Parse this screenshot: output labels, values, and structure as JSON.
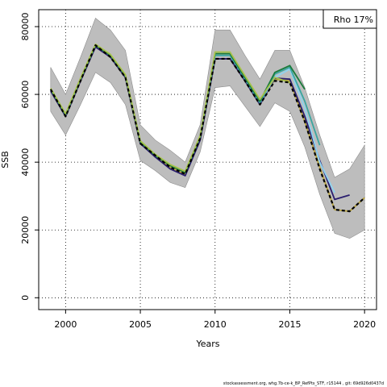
{
  "chart_data": {
    "type": "line",
    "xlabel": "Years",
    "ylabel": "SSB",
    "xlim": [
      1998.2,
      2020.8
    ],
    "ylim": [
      -3500,
      85000
    ],
    "xticks": [
      2000,
      2005,
      2010,
      2015,
      2020
    ],
    "yticks": [
      0,
      20000,
      40000,
      60000,
      80000
    ],
    "grid": "dotted",
    "legend": {
      "text": "Rho 17%",
      "placement": "top-right"
    },
    "band": {
      "x": [
        1999,
        2000,
        2001,
        2002,
        2003,
        2004,
        2005,
        2006,
        2007,
        2008,
        2009,
        2010,
        2011,
        2012,
        2013,
        2014,
        2015,
        2016,
        2017,
        2018,
        2019,
        2020
      ],
      "upper": [
        68000,
        60000,
        71000,
        82500,
        79000,
        73000,
        51000,
        46500,
        43500,
        40000,
        51000,
        79000,
        79000,
        71500,
        64500,
        73000,
        73000,
        62000,
        48000,
        35500,
        38000,
        45000
      ],
      "lower": [
        55000,
        48000,
        57000,
        66500,
        63500,
        57000,
        40500,
        37500,
        34000,
        32500,
        43000,
        62000,
        62500,
        56500,
        50500,
        57500,
        55000,
        44500,
        30500,
        19000,
        17500,
        20000
      ]
    },
    "series": [
      {
        "color": "#b5a03a",
        "dashed": false,
        "x": [
          1999,
          2000,
          2001,
          2002,
          2003,
          2004,
          2005,
          2006,
          2007,
          2008,
          2009,
          2010,
          2011,
          2012,
          2013,
          2014,
          2015,
          2016,
          2017,
          2018,
          2019,
          2020
        ],
        "values": [
          61500,
          53500,
          64000,
          74500,
          71000,
          65000,
          45500,
          42000,
          38500,
          36500,
          47000,
          70500,
          70500,
          64000,
          57000,
          64500,
          64000,
          52000,
          38500,
          26000,
          25500,
          29500
        ]
      },
      {
        "color": "#2a1e6e",
        "dashed": false,
        "x": [
          1999,
          2000,
          2001,
          2002,
          2003,
          2004,
          2005,
          2006,
          2007,
          2008,
          2009,
          2010,
          2011,
          2012,
          2013,
          2014,
          2015,
          2016,
          2017,
          2018,
          2019
        ],
        "values": [
          61000,
          53500,
          64000,
          74000,
          71000,
          65000,
          45500,
          41500,
          38000,
          36000,
          46500,
          70500,
          70500,
          64000,
          57000,
          64800,
          64500,
          53500,
          40500,
          29000,
          30300
        ]
      },
      {
        "color": "#8ed3f0",
        "dashed": false,
        "x": [
          1999,
          2000,
          2001,
          2002,
          2003,
          2004,
          2005,
          2006,
          2007,
          2008,
          2009,
          2010,
          2011,
          2012,
          2013,
          2014,
          2015,
          2016,
          2017,
          2018
        ],
        "values": [
          61500,
          54000,
          64500,
          74500,
          71500,
          65500,
          46000,
          42000,
          39000,
          37000,
          47500,
          71500,
          71500,
          64500,
          57500,
          65000,
          67500,
          56000,
          40000,
          31000
        ]
      },
      {
        "color": "#3aa6a0",
        "dashed": false,
        "x": [
          1999,
          2000,
          2001,
          2002,
          2003,
          2004,
          2005,
          2006,
          2007,
          2008,
          2009,
          2010,
          2011,
          2012,
          2013,
          2014,
          2015,
          2016,
          2017
        ],
        "values": [
          61500,
          54000,
          64500,
          74500,
          71500,
          65500,
          46000,
          42000,
          39000,
          37000,
          47500,
          71500,
          71500,
          64500,
          57500,
          66000,
          68000,
          58000,
          45000
        ]
      },
      {
        "color": "#1a7a3a",
        "dashed": false,
        "x": [
          1999,
          2000,
          2001,
          2002,
          2003,
          2004,
          2005,
          2006,
          2007,
          2008,
          2009,
          2010,
          2011,
          2012,
          2013,
          2014,
          2015,
          2016
        ],
        "values": [
          61500,
          54000,
          64500,
          74500,
          71500,
          65500,
          46000,
          42000,
          39000,
          37000,
          47500,
          72000,
          72000,
          65000,
          58000,
          66500,
          68500,
          61500
        ]
      },
      {
        "color": "#a6c24a",
        "dashed": false,
        "x": [
          1999,
          2000,
          2001,
          2002,
          2003,
          2004,
          2005,
          2006,
          2007,
          2008,
          2009,
          2010,
          2011,
          2012,
          2013,
          2014,
          2015
        ],
        "values": [
          61800,
          54300,
          64800,
          74800,
          71800,
          65800,
          46300,
          42300,
          39300,
          37300,
          47800,
          72500,
          72500,
          65500,
          58500,
          65000,
          63500
        ]
      },
      {
        "color": "#000000",
        "dashed": true,
        "x": [
          1999,
          2000,
          2001,
          2002,
          2003,
          2004,
          2005,
          2006,
          2007,
          2008,
          2009,
          2010,
          2011,
          2012,
          2013,
          2014,
          2015,
          2016,
          2017,
          2018,
          2019,
          2020
        ],
        "values": [
          61500,
          53500,
          64000,
          74500,
          71000,
          65000,
          45500,
          42000,
          38500,
          36500,
          47000,
          70500,
          70500,
          64000,
          57000,
          64000,
          63500,
          52000,
          38000,
          26000,
          25500,
          29500
        ]
      }
    ]
  },
  "footer": "stockassessment.org, whg.7b-ce-k_BP_RefPts_STF, r15144 , git: 69d926d0437d"
}
